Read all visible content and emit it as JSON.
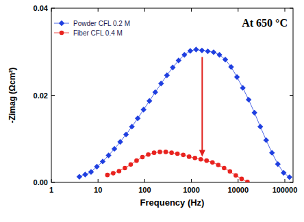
{
  "chart_data": {
    "type": "line",
    "annotation": "At 650 °C",
    "x_label": "Frequency (Hz)",
    "y_label": "-Zimag (Ωcm²)",
    "log": "x",
    "legend": "upper left",
    "grid": false,
    "xlim": [
      1,
      150000
    ],
    "xticks": [
      1,
      10,
      100,
      1000,
      10000,
      100000
    ],
    "ylim": [
      0,
      0.04
    ],
    "yticks": [
      {
        "value": 0,
        "label": "0.00"
      },
      0.02,
      0.04
    ],
    "arrow": {
      "x": 1700,
      "y_from": 0.0288,
      "y_to": 0.0059,
      "color": "#e0201c"
    },
    "series": [
      {
        "name": "Powder CFL 0.2 M",
        "color": "#1f3fe0",
        "marker": "diamond",
        "line_style": "solid",
        "x": [
          3.98,
          5.31,
          7.08,
          9.44,
          12.59,
          16.79,
          22.39,
          29.85,
          39.81,
          53.09,
          70.79,
          94.41,
          125.9,
          167.9,
          223.9,
          298.5,
          398.1,
          530.9,
          707.9,
          944.1,
          1259,
          1679,
          2239,
          2985,
          3981,
          5309,
          7079,
          9441,
          12589,
          16788,
          22387,
          29854,
          39811,
          53088,
          70795,
          94406,
          125893
        ],
        "values": [
          0.0013,
          0.0018,
          0.0024,
          0.0036,
          0.0048,
          0.0062,
          0.0077,
          0.0093,
          0.011,
          0.0128,
          0.0147,
          0.0167,
          0.0187,
          0.0207,
          0.0227,
          0.0246,
          0.0264,
          0.028,
          0.0293,
          0.0302,
          0.0305,
          0.0303,
          0.0301,
          0.0299,
          0.0293,
          0.0282,
          0.0265,
          0.0242,
          0.0217,
          0.019,
          0.016,
          0.0128,
          0.0097,
          0.0068,
          0.0042,
          0.0022,
          0.0012
        ]
      },
      {
        "name": "Fiber CFL 0.4 M",
        "color": "#e8231f",
        "marker": "circle",
        "line_style": "solid",
        "x": [
          15.85,
          21.13,
          28.18,
          37.58,
          50.12,
          66.83,
          89.13,
          118.9,
          158.5,
          211.3,
          281.8,
          375.8,
          501.2,
          668.3,
          891.3,
          1189,
          1585,
          2113,
          2818,
          3758,
          5012,
          6683,
          8913,
          11885,
          15849
        ],
        "values": [
          0.0017,
          0.0021,
          0.0026,
          0.0033,
          0.0041,
          0.005,
          0.0058,
          0.0064,
          0.0068,
          0.007,
          0.007,
          0.0068,
          0.0066,
          0.0063,
          0.0059,
          0.0056,
          0.0053,
          0.005,
          0.0046,
          0.004,
          0.0033,
          0.0025,
          0.0016,
          0.0008,
          0.0001
        ]
      }
    ]
  }
}
